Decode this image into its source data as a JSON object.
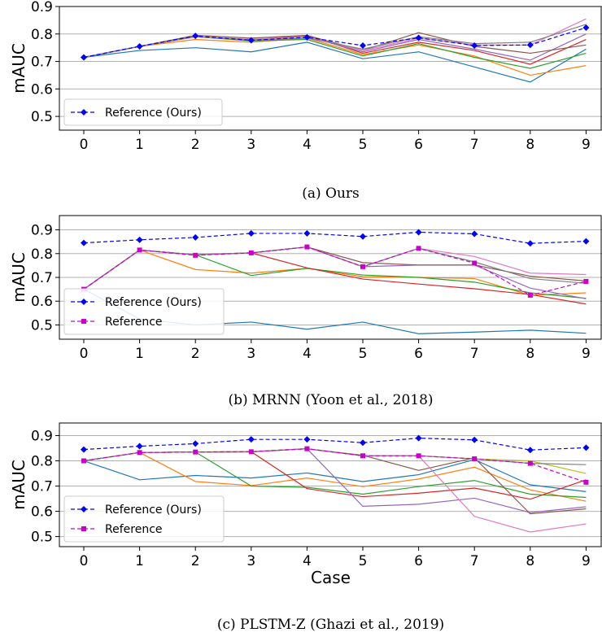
{
  "chart_data": [
    {
      "type": "line",
      "caption": "(a) Ours",
      "ylabel": "mAUC",
      "xlabel": "",
      "categories": [
        0,
        1,
        2,
        3,
        4,
        5,
        6,
        7,
        8,
        9
      ],
      "ylim": [
        0.45,
        0.9
      ],
      "yticks": [
        0.5,
        0.6,
        0.7,
        0.8,
        0.9
      ],
      "grid": "horizontal",
      "legend_position": "lower-left",
      "reference_series": [
        {
          "name": "Reference (Ours)",
          "color": "#0000ff",
          "marker": "diamond",
          "values": [
            0.715,
            0.755,
            0.793,
            0.777,
            0.788,
            0.758,
            0.786,
            0.758,
            0.76,
            0.823
          ]
        }
      ],
      "series": [
        {
          "color": "#1f77b4",
          "values": [
            0.715,
            0.74,
            0.75,
            0.735,
            0.77,
            0.71,
            0.735,
            0.68,
            0.625,
            0.745
          ]
        },
        {
          "color": "#ff7f0e",
          "values": [
            0.715,
            0.755,
            0.78,
            0.77,
            0.785,
            0.725,
            0.76,
            0.72,
            0.65,
            0.685
          ]
        },
        {
          "color": "#2ca02c",
          "values": [
            0.715,
            0.755,
            0.79,
            0.775,
            0.78,
            0.72,
            0.765,
            0.715,
            0.675,
            0.73
          ]
        },
        {
          "color": "#d62728",
          "values": [
            0.715,
            0.755,
            0.79,
            0.778,
            0.795,
            0.73,
            0.77,
            0.74,
            0.69,
            0.78
          ]
        },
        {
          "color": "#9467bd",
          "values": [
            0.715,
            0.755,
            0.79,
            0.78,
            0.79,
            0.735,
            0.78,
            0.745,
            0.705,
            0.8
          ]
        },
        {
          "color": "#8c564b",
          "values": [
            0.715,
            0.755,
            0.795,
            0.785,
            0.795,
            0.74,
            0.805,
            0.755,
            0.73,
            0.76
          ]
        },
        {
          "color": "#e377c2",
          "values": [
            0.715,
            0.755,
            0.79,
            0.78,
            0.79,
            0.74,
            0.785,
            0.76,
            0.76,
            0.855
          ]
        },
        {
          "color": "#7f7f7f",
          "values": [
            0.715,
            0.755,
            0.79,
            0.778,
            0.785,
            0.745,
            0.79,
            0.765,
            0.77,
            0.835
          ]
        }
      ]
    },
    {
      "type": "line",
      "caption": "(b) MRNN (Yoon et al., 2018)",
      "ylabel": "mAUC",
      "xlabel": "",
      "categories": [
        0,
        1,
        2,
        3,
        4,
        5,
        6,
        7,
        8,
        9
      ],
      "ylim": [
        0.44,
        0.96
      ],
      "yticks": [
        0.5,
        0.6,
        0.7,
        0.8,
        0.9
      ],
      "grid": "horizontal",
      "legend_position": "lower-left",
      "reference_series": [
        {
          "name": "Reference (Ours)",
          "color": "#0000ff",
          "marker": "diamond",
          "values": [
            0.845,
            0.858,
            0.868,
            0.885,
            0.885,
            0.872,
            0.89,
            0.883,
            0.843,
            0.852
          ]
        },
        {
          "name": "Reference",
          "color": "#cc00cc",
          "marker": "square",
          "values": [
            0.65,
            0.815,
            0.793,
            0.803,
            0.828,
            0.745,
            0.822,
            0.76,
            0.625,
            0.683
          ]
        }
      ],
      "series": [
        {
          "color": "#1f77b4",
          "values": [
            0.65,
            0.525,
            0.5,
            0.512,
            0.482,
            0.512,
            0.463,
            0.47,
            0.478,
            0.465
          ]
        },
        {
          "color": "#ff7f0e",
          "values": [
            0.65,
            0.815,
            0.733,
            0.718,
            0.738,
            0.703,
            0.7,
            0.695,
            0.625,
            0.635
          ]
        },
        {
          "color": "#2ca02c",
          "values": [
            0.65,
            0.815,
            0.795,
            0.708,
            0.738,
            0.71,
            0.7,
            0.68,
            0.635,
            0.612
          ]
        },
        {
          "color": "#d62728",
          "values": [
            0.65,
            0.815,
            0.795,
            0.803,
            0.74,
            0.693,
            0.672,
            0.652,
            0.628,
            0.588
          ]
        },
        {
          "color": "#9467bd",
          "values": [
            0.65,
            0.815,
            0.795,
            0.803,
            0.828,
            0.745,
            0.752,
            0.752,
            0.655,
            0.61
          ]
        },
        {
          "color": "#8c564b",
          "values": [
            0.65,
            0.815,
            0.795,
            0.803,
            0.828,
            0.762,
            0.752,
            0.752,
            0.705,
            0.685
          ]
        },
        {
          "color": "#e377c2",
          "values": [
            0.65,
            0.815,
            0.795,
            0.803,
            0.828,
            0.745,
            0.822,
            0.788,
            0.718,
            0.712
          ]
        },
        {
          "color": "#7f7f7f",
          "values": [
            0.65,
            0.815,
            0.795,
            0.803,
            0.828,
            0.745,
            0.822,
            0.765,
            0.695,
            0.675
          ]
        }
      ]
    },
    {
      "type": "line",
      "caption": "(c) PLSTM-Z (Ghazi et al., 2019)",
      "ylabel": "mAUC",
      "xlabel": "Case",
      "categories": [
        0,
        1,
        2,
        3,
        4,
        5,
        6,
        7,
        8,
        9
      ],
      "ylim": [
        0.46,
        0.95
      ],
      "yticks": [
        0.5,
        0.6,
        0.7,
        0.8,
        0.9
      ],
      "grid": "horizontal",
      "legend_position": "lower-left",
      "reference_series": [
        {
          "name": "Reference (Ours)",
          "color": "#0000ff",
          "marker": "diamond",
          "values": [
            0.845,
            0.858,
            0.868,
            0.885,
            0.885,
            0.872,
            0.89,
            0.883,
            0.843,
            0.852
          ]
        },
        {
          "name": "Reference",
          "color": "#cc00cc",
          "marker": "square",
          "values": [
            0.8,
            0.833,
            0.835,
            0.836,
            0.848,
            0.82,
            0.82,
            0.808,
            0.79,
            0.715
          ]
        }
      ],
      "series": [
        {
          "color": "#1f77b4",
          "values": [
            0.8,
            0.725,
            0.742,
            0.732,
            0.752,
            0.718,
            0.745,
            0.805,
            0.705,
            0.678
          ]
        },
        {
          "color": "#ff7f0e",
          "values": [
            0.8,
            0.833,
            0.718,
            0.702,
            0.732,
            0.698,
            0.728,
            0.775,
            0.685,
            0.64
          ]
        },
        {
          "color": "#2ca02c",
          "values": [
            0.8,
            0.833,
            0.835,
            0.7,
            0.695,
            0.668,
            0.698,
            0.722,
            0.668,
            0.655
          ]
        },
        {
          "color": "#d62728",
          "values": [
            0.8,
            0.833,
            0.835,
            0.836,
            0.69,
            0.658,
            0.672,
            0.692,
            0.648,
            0.725
          ]
        },
        {
          "color": "#9467bd",
          "values": [
            0.8,
            0.833,
            0.835,
            0.836,
            0.848,
            0.62,
            0.628,
            0.652,
            0.595,
            0.618
          ]
        },
        {
          "color": "#8c564b",
          "values": [
            0.8,
            0.833,
            0.835,
            0.836,
            0.848,
            0.822,
            0.762,
            0.812,
            0.59,
            0.61
          ]
        },
        {
          "color": "#e377c2",
          "values": [
            0.8,
            0.833,
            0.835,
            0.836,
            0.848,
            0.82,
            0.82,
            0.58,
            0.518,
            0.55
          ]
        },
        {
          "color": "#bcbd22",
          "values": [
            0.8,
            0.833,
            0.835,
            0.836,
            0.848,
            0.82,
            0.82,
            0.808,
            0.8,
            0.75
          ]
        },
        {
          "color": "#7f7f7f",
          "values": [
            0.8,
            0.833,
            0.835,
            0.836,
            0.848,
            0.82,
            0.82,
            0.808,
            0.79,
            0.785
          ]
        }
      ]
    }
  ]
}
